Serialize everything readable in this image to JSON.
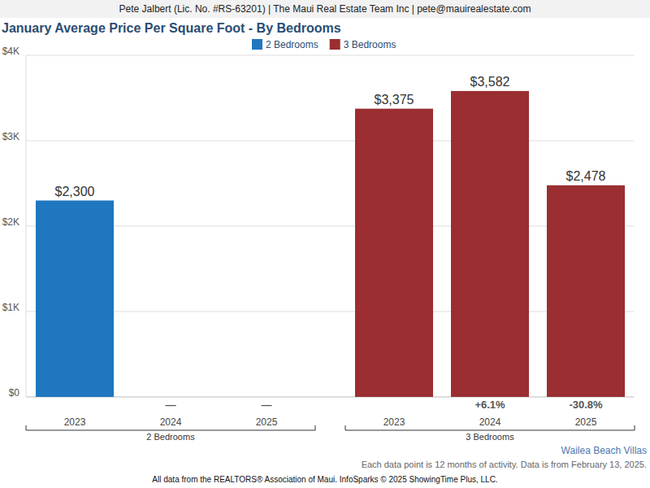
{
  "chart_data": {
    "type": "bar",
    "header": "Pete Jalbert (Lic. No. #RS-63201) | The Maui Real Estate Team Inc | pete@mauirealestate.com",
    "title": "January Average Price Per Square Foot - By Bedrooms",
    "subtitle": "Wailea Beach Villas",
    "note": "Each data point is 12 months of activity. Data is from February 13, 2025.",
    "source": "All data from the REALTORS® Association of Maui. InfoSparks © 2025 ShowingTime Plus, LLC.",
    "categories": [
      "2023",
      "2024",
      "2025"
    ],
    "series": [
      {
        "name": "2 Bedrooms",
        "color": "#1f77c0",
        "values": [
          2300,
          null,
          null
        ],
        "value_labels": [
          "$2,300",
          null,
          null
        ],
        "change_labels": [
          null,
          "—",
          "—"
        ]
      },
      {
        "name": "3 Bedrooms",
        "color": "#9a2e31",
        "values": [
          3375,
          3582,
          2478
        ],
        "value_labels": [
          "$3,375",
          "$3,582",
          "$2,478"
        ],
        "change_labels": [
          null,
          "+6.1%",
          "-30.8%"
        ]
      }
    ],
    "ylim": [
      0,
      4000
    ],
    "yticks": [
      {
        "value": 0,
        "label": "$0"
      },
      {
        "value": 1000,
        "label": "$1K"
      },
      {
        "value": 2000,
        "label": "$2K"
      },
      {
        "value": 3000,
        "label": "$3K"
      },
      {
        "value": 4000,
        "label": "$4K"
      }
    ],
    "grid": true,
    "legend": "top",
    "data_labels": true
  }
}
